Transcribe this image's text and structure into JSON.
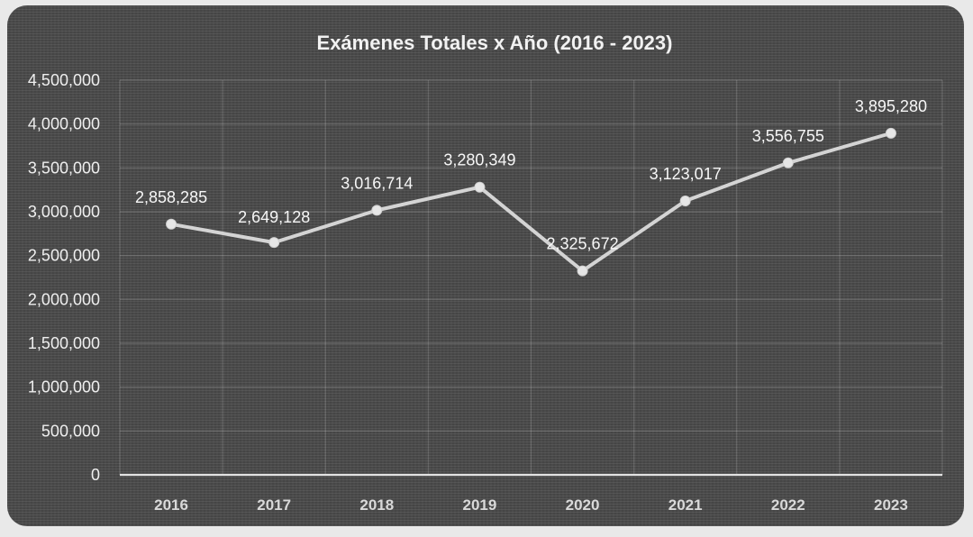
{
  "chart_data": {
    "type": "line",
    "title": "Exámenes Totales x Año (2016 - 2023)",
    "categories": [
      "2016",
      "2017",
      "2018",
      "2019",
      "2020",
      "2021",
      "2022",
      "2023"
    ],
    "values": [
      2858285,
      2649128,
      3016714,
      3280349,
      2325672,
      3123017,
      3556755,
      3895280
    ],
    "data_labels": [
      "2,858,285",
      "2,649,128",
      "3,016,714",
      "3,280,349",
      "2,325,672",
      "3,123,017",
      "3,556,755",
      "3,895,280"
    ],
    "y_ticks": [
      "0",
      "500,000",
      "1,000,000",
      "1,500,000",
      "2,000,000",
      "2,500,000",
      "3,000,000",
      "3,500,000",
      "4,000,000",
      "4,500,000"
    ],
    "ylim": [
      0,
      4500000
    ],
    "grid": true,
    "legend": "none",
    "colors": {
      "background": "#4a4a4a",
      "line": "#d4d4d4",
      "text": "#f2f2f2"
    }
  }
}
